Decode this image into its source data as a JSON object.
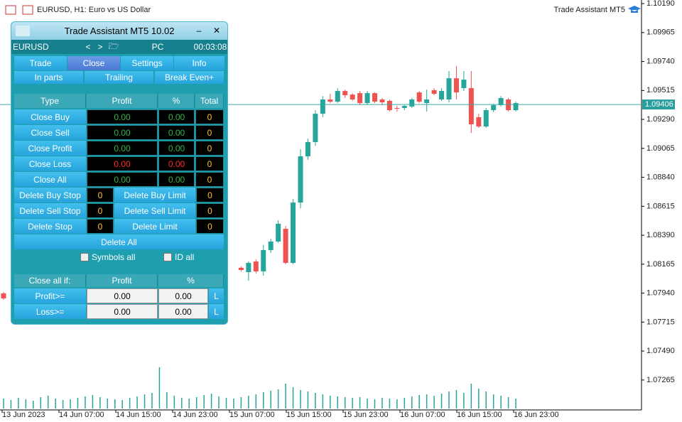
{
  "header": {
    "symbol_info": "EURUSD, H1:  Euro vs US Dollar",
    "expert": "Trade Assistant MT5"
  },
  "chart": {
    "type": "candlestick",
    "ylim": [
      1.07038,
      1.10218
    ],
    "yticks": [
      {
        "value": 1.1019,
        "label": "1.10190"
      },
      {
        "value": 1.09965,
        "label": "1.09965"
      },
      {
        "value": 1.0974,
        "label": "1.09740"
      },
      {
        "value": 1.09515,
        "label": "1.09515"
      },
      {
        "value": 1.0929,
        "label": "1.09290"
      },
      {
        "value": 1.09065,
        "label": "1.09065"
      },
      {
        "value": 1.0884,
        "label": "1.08840"
      },
      {
        "value": 1.08615,
        "label": "1.08615"
      },
      {
        "value": 1.0839,
        "label": "1.08390"
      },
      {
        "value": 1.08165,
        "label": "1.08165"
      },
      {
        "value": 1.0794,
        "label": "1.07940"
      },
      {
        "value": 1.07715,
        "label": "1.07715"
      },
      {
        "value": 1.0749,
        "label": "1.07490"
      },
      {
        "value": 1.07265,
        "label": "1.07265"
      }
    ],
    "last": {
      "value": 1.09406,
      "label": "1.09406"
    },
    "x_labels": [
      "13 Jun 2023",
      "14 Jun 07:00",
      "14 Jun 15:00",
      "14 Jun 23:00",
      "15 Jun 07:00",
      "15 Jun 15:00",
      "15 Jun 23:00",
      "16 Jun 07:00",
      "16 Jun 15:00",
      "16 Jun 23:00"
    ],
    "up_color": "#26a69a",
    "down_color": "#ef5350",
    "candles": [
      {
        "o": 1.07938,
        "h": 1.0795,
        "l": 1.07888,
        "c": 1.07899
      },
      null,
      null,
      null,
      null,
      null,
      null,
      null,
      null,
      null,
      null,
      null,
      null,
      null,
      null,
      null,
      null,
      null,
      null,
      null,
      null,
      null,
      null,
      null,
      null,
      null,
      null,
      null,
      null,
      null,
      null,
      null,
      {
        "o": 1.08137,
        "h": 1.08148,
        "l": 1.08109,
        "c": 1.0812
      },
      {
        "o": 1.08103,
        "h": 1.08186,
        "l": 1.08037,
        "c": 1.08175
      },
      {
        "o": 1.08186,
        "h": 1.08203,
        "l": 1.08092,
        "c": 1.08109
      },
      {
        "o": 1.08109,
        "h": 1.08313,
        "l": 1.08076,
        "c": 1.08275
      },
      {
        "o": 1.08275,
        "h": 1.08362,
        "l": 1.08253,
        "c": 1.08341
      },
      {
        "o": 1.08341,
        "h": 1.08506,
        "l": 1.0833,
        "c": 1.08479
      },
      {
        "o": 1.0844,
        "h": 1.08462,
        "l": 1.08164,
        "c": 1.08175
      },
      {
        "o": 1.08175,
        "h": 1.08672,
        "l": 1.08164,
        "c": 1.08644
      },
      {
        "o": 1.08644,
        "h": 1.09058,
        "l": 1.086,
        "c": 1.09003
      },
      {
        "o": 1.09003,
        "h": 1.09141,
        "l": 1.08976,
        "c": 1.09114
      },
      {
        "o": 1.09114,
        "h": 1.09362,
        "l": 1.09085,
        "c": 1.09334
      },
      {
        "o": 1.09334,
        "h": 1.09472,
        "l": 1.09307,
        "c": 1.09445
      },
      {
        "o": 1.09445,
        "h": 1.09489,
        "l": 1.09417,
        "c": 1.09428
      },
      {
        "o": 1.09428,
        "h": 1.09533,
        "l": 1.09417,
        "c": 1.09511
      },
      {
        "o": 1.09511,
        "h": 1.09522,
        "l": 1.09456,
        "c": 1.09478
      },
      {
        "o": 1.09483,
        "h": 1.09494,
        "l": 1.09434,
        "c": 1.09445
      },
      {
        "o": 1.09494,
        "h": 1.09511,
        "l": 1.09401,
        "c": 1.09417
      },
      {
        "o": 1.09417,
        "h": 1.09511,
        "l": 1.09401,
        "c": 1.09494
      },
      {
        "o": 1.09494,
        "h": 1.095,
        "l": 1.09417,
        "c": 1.09428
      },
      {
        "o": 1.09445,
        "h": 1.09456,
        "l": 1.09401,
        "c": 1.09423
      },
      {
        "o": 1.09434,
        "h": 1.09445,
        "l": 1.09351,
        "c": 1.09362
      },
      {
        "o": 1.09379,
        "h": 1.09395,
        "l": 1.09351,
        "c": 1.09373
      },
      {
        "o": 1.09379,
        "h": 1.09401,
        "l": 1.09362,
        "c": 1.09395
      },
      {
        "o": 1.0939,
        "h": 1.09456,
        "l": 1.09379,
        "c": 1.09445
      },
      {
        "o": 1.095,
        "h": 1.09511,
        "l": 1.09417,
        "c": 1.09428
      },
      {
        "o": 1.09417,
        "h": 1.09522,
        "l": 1.09351,
        "c": 1.09445
      },
      {
        "o": 1.09517,
        "h": 1.09533,
        "l": 1.09478,
        "c": 1.09489
      },
      {
        "o": 1.09445,
        "h": 1.09533,
        "l": 1.09434,
        "c": 1.09511
      },
      {
        "o": 1.09445,
        "h": 1.09666,
        "l": 1.09423,
        "c": 1.0961
      },
      {
        "o": 1.0961,
        "h": 1.09704,
        "l": 1.09445,
        "c": 1.095
      },
      {
        "o": 1.09533,
        "h": 1.09666,
        "l": 1.09511,
        "c": 1.09599
      },
      {
        "o": 1.09533,
        "h": 1.09666,
        "l": 1.09185,
        "c": 1.09252
      },
      {
        "o": 1.09307,
        "h": 1.09334,
        "l": 1.09224,
        "c": 1.09235
      },
      {
        "o": 1.09235,
        "h": 1.09379,
        "l": 1.09224,
        "c": 1.09362
      },
      {
        "o": 1.09362,
        "h": 1.09412,
        "l": 1.09346,
        "c": 1.09401
      },
      {
        "o": 1.09401,
        "h": 1.09472,
        "l": 1.0939,
        "c": 1.09456
      },
      {
        "o": 1.09445,
        "h": 1.09456,
        "l": 1.09351,
        "c": 1.09362
      },
      {
        "o": 1.09362,
        "h": 1.09428,
        "l": 1.09351,
        "c": 1.09417
      }
    ],
    "volumes": [
      1400,
      1200,
      1500,
      1300,
      1100,
      1600,
      1800,
      1400,
      1200,
      1300,
      1500,
      1700,
      1900,
      1600,
      1400,
      1300,
      1200,
      1500,
      1700,
      2000,
      2200,
      5800,
      2300,
      1800,
      1500,
      1400,
      1600,
      1900,
      2100,
      1700,
      1500,
      1400,
      1600,
      1800,
      2000,
      2300,
      2500,
      2700,
      3500,
      3000,
      2600,
      2400,
      2200,
      2000,
      1800,
      1700,
      1600,
      1500,
      1600,
      1400,
      1300,
      1500,
      1400,
      1300,
      1500,
      1700,
      1900,
      2000,
      1800,
      2100,
      2400,
      2600,
      2200,
      3500,
      2800,
      2400,
      2000,
      1800,
      1600,
      1400
    ]
  },
  "panel": {
    "title": "Trade Assistant MT5 10.02",
    "symbol": "EURUSD",
    "prev": "<",
    "next": ">",
    "mode": "PC",
    "timer": "00:03:08",
    "tabs": [
      "Trade",
      "Close",
      "Settings",
      "Info"
    ],
    "subtabs": [
      "In parts",
      "Trailing",
      "Break Even+"
    ],
    "table": {
      "header": [
        "Type",
        "Profit",
        "%",
        "Total"
      ],
      "rows": [
        [
          "Close Buy",
          "0.00",
          "0.00",
          "0"
        ],
        [
          "Close Sell",
          "0.00",
          "0.00",
          "0"
        ],
        [
          "Close Profit",
          "0.00",
          "0.00",
          "0"
        ],
        [
          "Close Loss",
          "0.00",
          "0.00",
          "0"
        ],
        [
          "Close All",
          "0.00",
          "0.00",
          "0"
        ]
      ]
    },
    "delete_rows": [
      [
        "Delete Buy Stop",
        "0",
        "Delete Buy Limit",
        "0"
      ],
      [
        "Delete Sell Stop",
        "0",
        "Delete Sell Limit",
        "0"
      ],
      [
        "Delete Stop",
        "0",
        "Delete Limit",
        "0"
      ]
    ],
    "delete_all": "Delete All",
    "checkboxes": [
      "Symbols all",
      "ID all"
    ],
    "close_all": {
      "header": [
        "Close all if:",
        "Profit",
        "%"
      ],
      "rows": [
        [
          "Profit>=",
          "0.00",
          "0.00",
          "L"
        ],
        [
          "Loss>=",
          "0.00",
          "0.00",
          "L"
        ]
      ]
    }
  }
}
